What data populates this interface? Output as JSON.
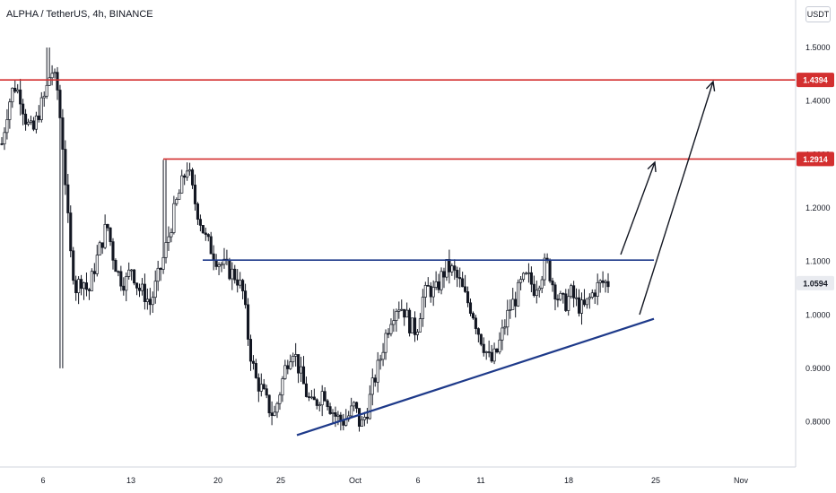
{
  "header": {
    "symbol": "ALPHA / TetherUS, 4h, BINANCE",
    "currency": "USDT"
  },
  "colors": {
    "resistance": "#d32f2f",
    "channel": "#1e3a8a",
    "candle": "#131722",
    "axis_text": "#131722",
    "current_price_tag": "#e9ebf0"
  },
  "chart_data": {
    "type": "candlestick",
    "symbol": "ALPHA / TetherUS",
    "interval": "4h",
    "exchange": "BINANCE",
    "currency": "USDT",
    "y_ticks": [
      1.5,
      1.4,
      1.3,
      1.2,
      1.1,
      1.0,
      0.9,
      0.8
    ],
    "x_ticks": [
      "6",
      "13",
      "20",
      "25",
      "Oct",
      "6",
      "11",
      "18",
      "25",
      "Nov"
    ],
    "ylim": [
      0.72,
      1.53
    ],
    "price_tags": [
      {
        "label": "1.4394",
        "value": 1.4394,
        "style": "resistance"
      },
      {
        "label": "1.2914",
        "value": 1.2914,
        "style": "resistance"
      },
      {
        "label": "1.0594",
        "value": 1.0594,
        "style": "current"
      }
    ],
    "resistance_levels": [
      1.4394,
      1.2914
    ],
    "neckline": 1.1023,
    "support_trendline": {
      "from": 0.775,
      "to": 0.9925
    },
    "price_path": [
      1.32,
      1.39,
      1.43,
      1.41,
      1.36,
      1.34,
      1.38,
      1.41,
      1.46,
      1.42,
      1.3,
      1.12,
      1.05,
      1.07,
      1.04,
      1.09,
      1.13,
      1.17,
      1.11,
      1.07,
      1.06,
      1.09,
      1.05,
      1.04,
      1.02,
      1.06,
      1.1,
      1.15,
      1.2,
      1.24,
      1.28,
      1.22,
      1.18,
      1.14,
      1.12,
      1.1,
      1.09,
      1.08,
      1.07,
      1.04,
      0.94,
      0.88,
      0.86,
      0.83,
      0.81,
      0.86,
      0.91,
      0.94,
      0.9,
      0.86,
      0.83,
      0.84,
      0.86,
      0.83,
      0.81,
      0.8,
      0.81,
      0.83,
      0.79,
      0.82,
      0.87,
      0.91,
      0.96,
      1.0,
      1.02,
      1.01,
      0.98,
      0.97,
      1.03,
      1.05,
      1.04,
      1.07,
      1.09,
      1.08,
      1.06,
      1.03,
      1.01,
      0.97,
      0.94,
      0.91,
      0.93,
      0.97,
      1.01,
      1.03,
      1.06,
      1.07,
      1.05,
      1.07,
      1.1,
      1.06,
      1.03,
      1.02,
      1.04,
      1.02,
      1.01,
      1.03,
      1.05,
      1.06,
      1.06
    ],
    "annotations": [
      {
        "type": "arrow",
        "target": 1.2914
      },
      {
        "type": "arrow",
        "target": 1.4394
      }
    ]
  }
}
